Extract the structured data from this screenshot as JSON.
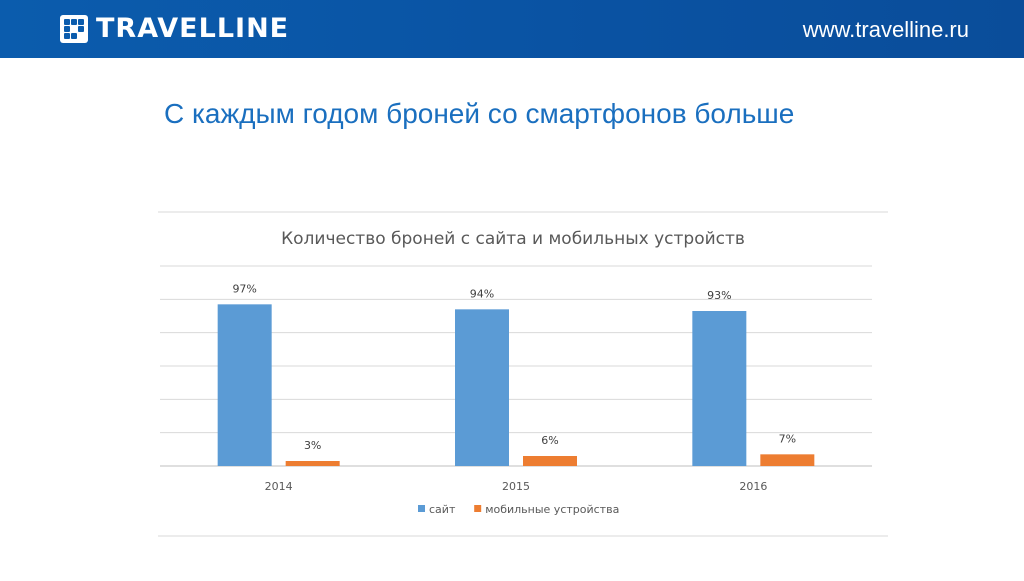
{
  "header": {
    "brand": "TRAVELLINE",
    "url": "www.travelline.ru",
    "background_color": "#0b5cad",
    "logo_icon": "dots-square-logo-icon"
  },
  "slide": {
    "title": "С каждым годом броней со смартфонов больше"
  },
  "chart_data": {
    "type": "bar",
    "title": "Количество броней с сайта и мобильных устройств",
    "categories": [
      "2014",
      "2015",
      "2016"
    ],
    "series": [
      {
        "name": "сайт",
        "values": [
          97,
          94,
          93
        ],
        "labels": [
          "97%",
          "94%",
          "93%"
        ],
        "color": "#5b9bd5"
      },
      {
        "name": "мобильные устройства",
        "values": [
          3,
          6,
          7
        ],
        "labels": [
          "3%",
          "6%",
          "7%"
        ],
        "color": "#ed7d31"
      }
    ],
    "ylim": [
      0,
      120
    ],
    "grid": true,
    "axis_labels_visible": false,
    "legend": "bottom"
  }
}
